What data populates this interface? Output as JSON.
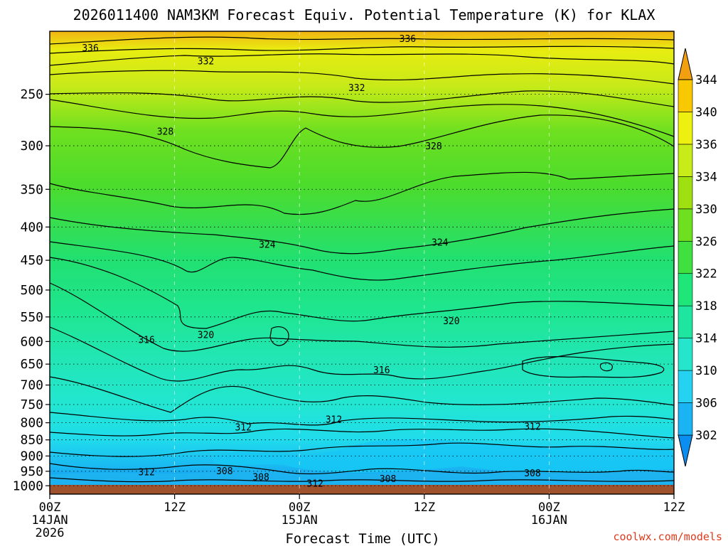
{
  "chart_data": {
    "type": "heatmap",
    "title": "2026011400 NAM3KM Forecast Equiv. Potential Temperature (K) for KLAX",
    "xlabel": "Forecast Time (UTC)",
    "ylabel": "",
    "x_ticks": [
      {
        "hours": 0,
        "line1": "00Z",
        "line2": "14JAN",
        "line3": "2026"
      },
      {
        "hours": 12,
        "line1": "12Z",
        "line2": "",
        "line3": ""
      },
      {
        "hours": 24,
        "line1": "00Z",
        "line2": "15JAN",
        "line3": ""
      },
      {
        "hours": 36,
        "line1": "12Z",
        "line2": "",
        "line3": ""
      },
      {
        "hours": 48,
        "line1": "00Z",
        "line2": "16JAN",
        "line3": ""
      },
      {
        "hours": 60,
        "line1": "12Z",
        "line2": "",
        "line3": ""
      }
    ],
    "xlim_hours": [
      0,
      60
    ],
    "y_ticks_hpa": [
      250,
      300,
      350,
      400,
      450,
      500,
      550,
      600,
      650,
      700,
      750,
      800,
      850,
      900,
      950,
      1000
    ],
    "ylim_hpa": [
      200,
      1030
    ],
    "colorbar": {
      "levels": [
        302,
        306,
        310,
        314,
        318,
        322,
        326,
        330,
        334,
        336,
        340,
        344
      ],
      "colors": [
        "#0a8ff0",
        "#1ab4f5",
        "#25d2f2",
        "#25e6cc",
        "#1ee6a0",
        "#1ee678",
        "#40e040",
        "#6ee020",
        "#9ee010",
        "#c8ec18",
        "#eef010",
        "#f8c800",
        "#f2a010"
      ]
    },
    "contour_labels": [
      {
        "text": "336",
        "hours": 3.9,
        "hpa": 212
      },
      {
        "text": "336",
        "hours": 34.4,
        "hpa": 205
      },
      {
        "text": "332",
        "hours": 15.0,
        "hpa": 222
      },
      {
        "text": "332",
        "hours": 29.5,
        "hpa": 244
      },
      {
        "text": "328",
        "hours": 11.1,
        "hpa": 285
      },
      {
        "text": "328",
        "hours": 36.9,
        "hpa": 300
      },
      {
        "text": "324",
        "hours": 20.9,
        "hpa": 425
      },
      {
        "text": "324",
        "hours": 37.5,
        "hpa": 422
      },
      {
        "text": "320",
        "hours": 15.0,
        "hpa": 585
      },
      {
        "text": "320",
        "hours": 38.6,
        "hpa": 557
      },
      {
        "text": "316",
        "hours": 9.3,
        "hpa": 596
      },
      {
        "text": "316",
        "hours": 31.9,
        "hpa": 663
      },
      {
        "text": "312",
        "hours": 18.6,
        "hpa": 812
      },
      {
        "text": "312",
        "hours": 27.3,
        "hpa": 790
      },
      {
        "text": "312",
        "hours": 46.4,
        "hpa": 810
      },
      {
        "text": "312",
        "hours": 9.3,
        "hpa": 952
      },
      {
        "text": "312",
        "hours": 25.5,
        "hpa": 990
      },
      {
        "text": "308",
        "hours": 16.8,
        "hpa": 948
      },
      {
        "text": "308",
        "hours": 20.3,
        "hpa": 968
      },
      {
        "text": "308",
        "hours": 32.5,
        "hpa": 975
      },
      {
        "text": "308",
        "hours": 46.4,
        "hpa": 955
      }
    ],
    "watermark": "coolwx.com/models"
  }
}
